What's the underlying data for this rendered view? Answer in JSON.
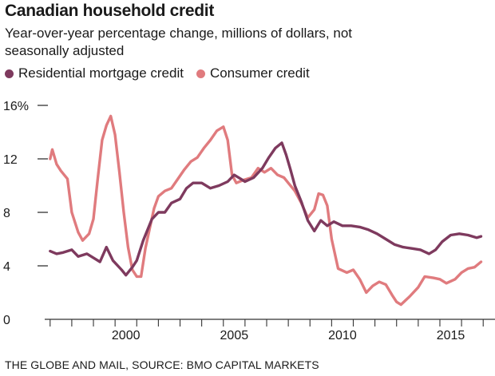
{
  "header": {
    "title": "Canadian household credit",
    "subtitle": "Year-over-year percentage change, millions of dollars, not seasonally adjusted"
  },
  "legend": [
    {
      "label": "Residential mortgage credit",
      "color": "#7e3a5e"
    },
    {
      "label": "Consumer credit",
      "color": "#e07b7e"
    }
  ],
  "source": "THE GLOBE AND MAIL, SOURCE: BMO CAPITAL MARKETS",
  "chart_data": {
    "type": "line",
    "title": "Canadian household credit",
    "subtitle": "Year-over-year percentage change, millions of dollars, not seasonally adjusted",
    "xlabel": "",
    "ylabel": "",
    "xlim": [
      1996.75,
      2017.25
    ],
    "ylim": [
      0,
      16
    ],
    "yticks": [
      {
        "value": 16,
        "label": "16%"
      },
      {
        "value": 12,
        "label": "12"
      },
      {
        "value": 8,
        "label": "8"
      },
      {
        "value": 4,
        "label": "4"
      },
      {
        "value": 0,
        "label": "0"
      }
    ],
    "xticks": [
      {
        "value": 2000,
        "label": "2000"
      },
      {
        "value": 2005,
        "label": "2005"
      },
      {
        "value": 2010,
        "label": "2010"
      },
      {
        "value": 2015,
        "label": "2015"
      }
    ],
    "grid": false,
    "legend_position": "top",
    "series": [
      {
        "name": "Residential mortgage credit",
        "color": "#7e3a5e",
        "points": [
          [
            1997.0,
            5.1
          ],
          [
            1997.3,
            4.9
          ],
          [
            1997.6,
            5.0
          ],
          [
            1998.0,
            5.2
          ],
          [
            1998.3,
            4.7
          ],
          [
            1998.7,
            4.9
          ],
          [
            1999.0,
            4.6
          ],
          [
            1999.3,
            4.3
          ],
          [
            1999.6,
            5.4
          ],
          [
            1999.9,
            4.4
          ],
          [
            2000.3,
            3.7
          ],
          [
            2000.5,
            3.3
          ],
          [
            2000.8,
            3.9
          ],
          [
            2001.0,
            4.4
          ],
          [
            2001.3,
            5.9
          ],
          [
            2001.7,
            7.5
          ],
          [
            2002.0,
            8.0
          ],
          [
            2002.3,
            8.0
          ],
          [
            2002.6,
            8.7
          ],
          [
            2003.0,
            9.0
          ],
          [
            2003.3,
            9.8
          ],
          [
            2003.6,
            10.2
          ],
          [
            2004.0,
            10.2
          ],
          [
            2004.4,
            9.8
          ],
          [
            2004.8,
            10.0
          ],
          [
            2005.2,
            10.3
          ],
          [
            2005.5,
            10.8
          ],
          [
            2005.8,
            10.5
          ],
          [
            2006.0,
            10.3
          ],
          [
            2006.4,
            10.6
          ],
          [
            2006.8,
            11.3
          ],
          [
            2007.1,
            12.1
          ],
          [
            2007.4,
            12.8
          ],
          [
            2007.7,
            13.2
          ],
          [
            2007.9,
            12.3
          ],
          [
            2008.1,
            11.2
          ],
          [
            2008.3,
            10.0
          ],
          [
            2008.6,
            8.8
          ],
          [
            2008.9,
            7.4
          ],
          [
            2009.2,
            6.6
          ],
          [
            2009.5,
            7.4
          ],
          [
            2009.8,
            7.0
          ],
          [
            2010.1,
            7.3
          ],
          [
            2010.5,
            7.0
          ],
          [
            2010.9,
            7.0
          ],
          [
            2011.3,
            6.9
          ],
          [
            2011.7,
            6.7
          ],
          [
            2012.1,
            6.4
          ],
          [
            2012.5,
            6.0
          ],
          [
            2012.9,
            5.6
          ],
          [
            2013.3,
            5.4
          ],
          [
            2013.7,
            5.3
          ],
          [
            2014.1,
            5.2
          ],
          [
            2014.5,
            4.9
          ],
          [
            2014.8,
            5.2
          ],
          [
            2015.1,
            5.8
          ],
          [
            2015.5,
            6.3
          ],
          [
            2015.9,
            6.4
          ],
          [
            2016.3,
            6.3
          ],
          [
            2016.7,
            6.1
          ],
          [
            2016.9,
            6.2
          ]
        ]
      },
      {
        "name": "Consumer credit",
        "color": "#e07b7e",
        "points": [
          [
            1997.0,
            12.0
          ],
          [
            1997.1,
            12.7
          ],
          [
            1997.3,
            11.6
          ],
          [
            1997.5,
            11.1
          ],
          [
            1997.8,
            10.5
          ],
          [
            1998.0,
            8.0
          ],
          [
            1998.3,
            6.5
          ],
          [
            1998.5,
            5.9
          ],
          [
            1998.8,
            6.4
          ],
          [
            1999.0,
            7.5
          ],
          [
            1999.2,
            10.5
          ],
          [
            1999.4,
            13.4
          ],
          [
            1999.6,
            14.5
          ],
          [
            1999.8,
            15.2
          ],
          [
            2000.0,
            13.8
          ],
          [
            2000.2,
            11.0
          ],
          [
            2000.4,
            8.0
          ],
          [
            2000.6,
            5.4
          ],
          [
            2000.8,
            3.7
          ],
          [
            2001.0,
            3.2
          ],
          [
            2001.2,
            3.2
          ],
          [
            2001.4,
            5.3
          ],
          [
            2001.6,
            6.8
          ],
          [
            2001.8,
            8.3
          ],
          [
            2002.0,
            9.2
          ],
          [
            2002.3,
            9.6
          ],
          [
            2002.6,
            9.8
          ],
          [
            2002.9,
            10.5
          ],
          [
            2003.2,
            11.2
          ],
          [
            2003.5,
            11.8
          ],
          [
            2003.8,
            12.1
          ],
          [
            2004.1,
            12.8
          ],
          [
            2004.4,
            13.4
          ],
          [
            2004.7,
            14.1
          ],
          [
            2005.0,
            14.4
          ],
          [
            2005.2,
            13.4
          ],
          [
            2005.4,
            10.8
          ],
          [
            2005.6,
            10.2
          ],
          [
            2005.9,
            10.4
          ],
          [
            2006.3,
            10.6
          ],
          [
            2006.6,
            11.3
          ],
          [
            2006.9,
            11.0
          ],
          [
            2007.2,
            11.3
          ],
          [
            2007.5,
            10.8
          ],
          [
            2007.8,
            10.6
          ],
          [
            2008.0,
            10.2
          ],
          [
            2008.3,
            9.6
          ],
          [
            2008.6,
            8.7
          ],
          [
            2008.9,
            7.6
          ],
          [
            2009.2,
            8.2
          ],
          [
            2009.4,
            9.4
          ],
          [
            2009.6,
            9.3
          ],
          [
            2009.8,
            8.5
          ],
          [
            2010.0,
            6.0
          ],
          [
            2010.3,
            3.8
          ],
          [
            2010.7,
            3.5
          ],
          [
            2011.0,
            3.7
          ],
          [
            2011.3,
            3.0
          ],
          [
            2011.6,
            2.0
          ],
          [
            2011.9,
            2.5
          ],
          [
            2012.2,
            2.8
          ],
          [
            2012.5,
            2.6
          ],
          [
            2012.8,
            1.8
          ],
          [
            2013.0,
            1.3
          ],
          [
            2013.2,
            1.1
          ],
          [
            2013.6,
            1.7
          ],
          [
            2014.0,
            2.4
          ],
          [
            2014.3,
            3.2
          ],
          [
            2014.7,
            3.1
          ],
          [
            2015.0,
            3.0
          ],
          [
            2015.3,
            2.7
          ],
          [
            2015.7,
            3.0
          ],
          [
            2016.0,
            3.5
          ],
          [
            2016.3,
            3.8
          ],
          [
            2016.6,
            3.9
          ],
          [
            2016.9,
            4.3
          ]
        ]
      }
    ]
  }
}
